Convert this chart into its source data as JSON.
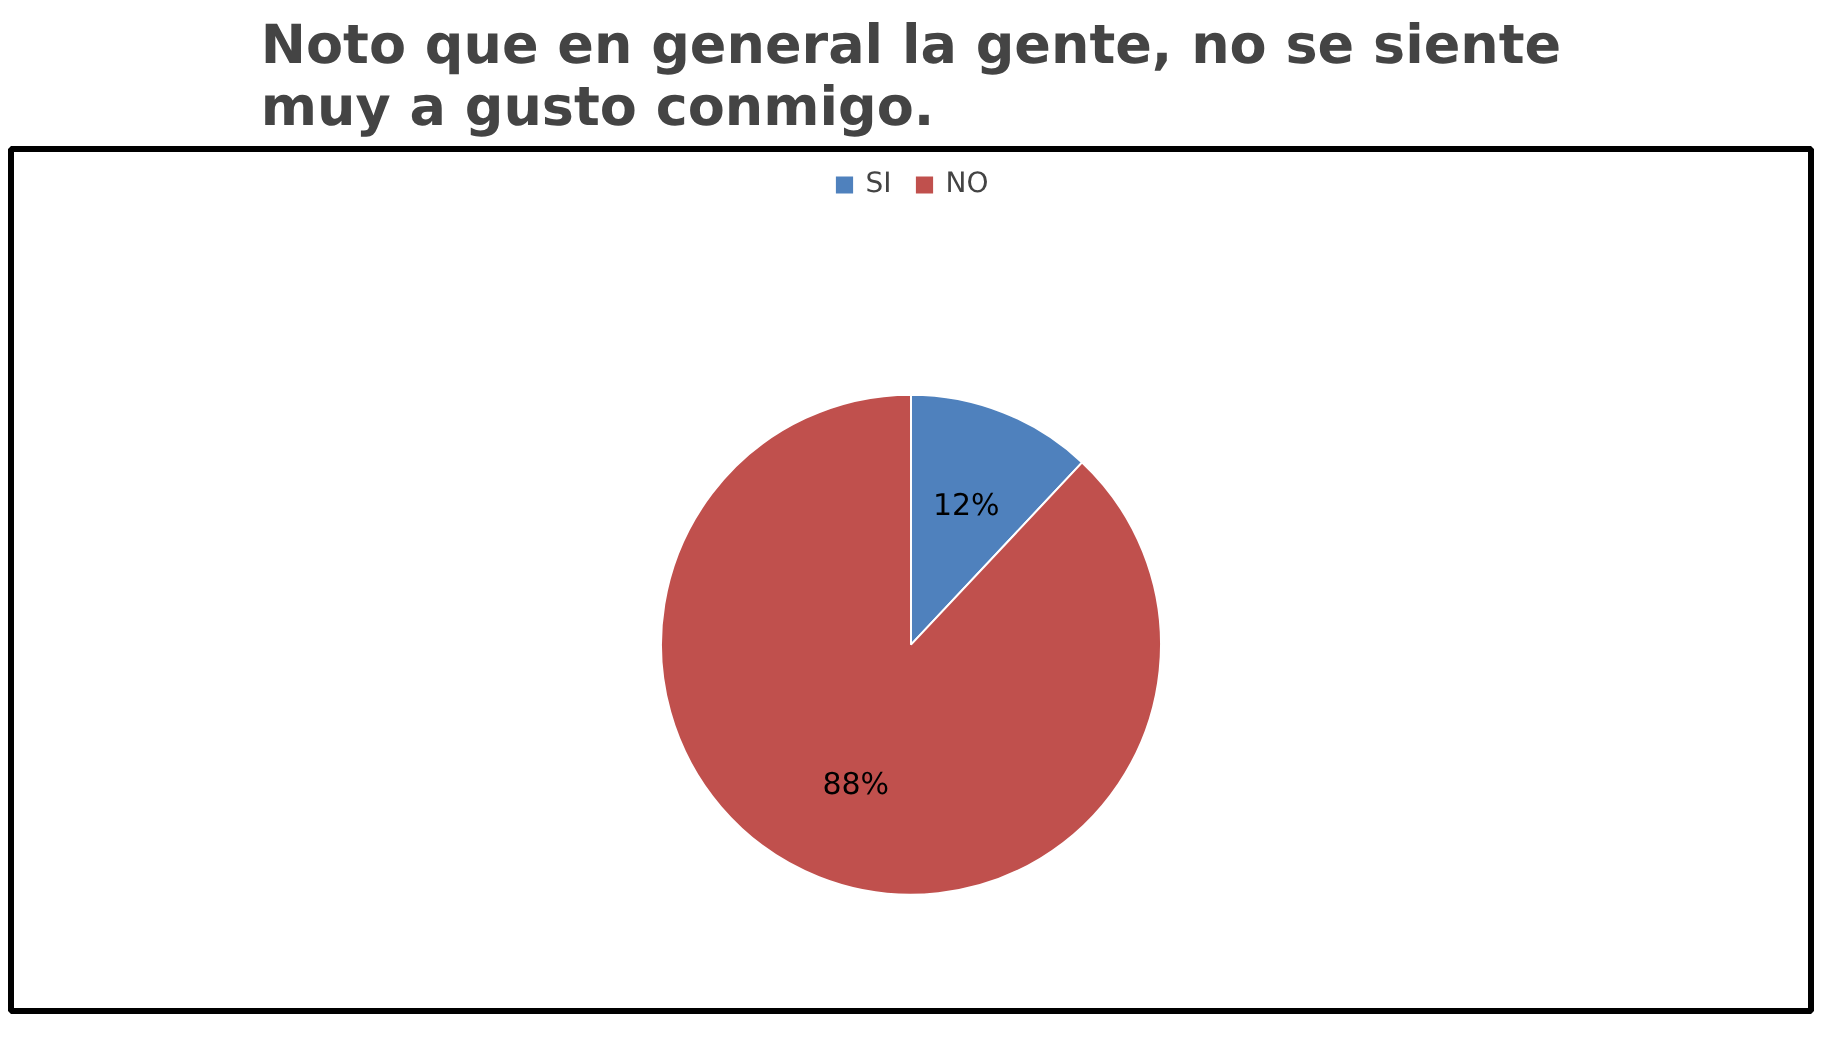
{
  "chart_data": {
    "type": "pie",
    "title": "Noto que en general la gente, no se siente\nmuy a gusto conmigo.",
    "categories": [
      "SI",
      "NO"
    ],
    "values": [
      12,
      88
    ],
    "colors": [
      "#4f81bd",
      "#c0504d"
    ],
    "value_labels": [
      "12%",
      "88%"
    ],
    "legend": "top"
  }
}
